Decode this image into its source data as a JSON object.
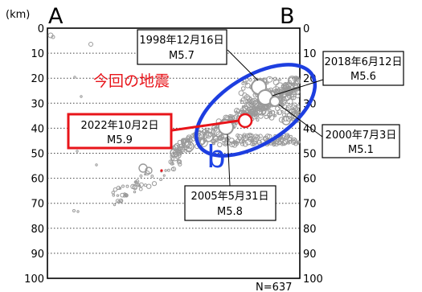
{
  "section": {
    "start_label": "A",
    "end_label": "B",
    "depth_unit": "(km)",
    "count_label": "N=637",
    "region_label": "b"
  },
  "depth_axis": {
    "ticks": [
      0,
      10,
      20,
      30,
      40,
      50,
      60,
      70,
      80,
      90,
      100
    ],
    "range": [
      0,
      100
    ]
  },
  "highlight": {
    "heading": "今回の地震",
    "date": "2022年10月2日",
    "magnitude": "M5.9",
    "color": "#e8141a"
  },
  "historical_events": [
    {
      "date": "1998年12月16日",
      "magnitude": "M5.7"
    },
    {
      "date": "2018年6月12日",
      "magnitude": "M5.6"
    },
    {
      "date": "2000年7月3日",
      "magnitude": "M5.1"
    },
    {
      "date": "2005年5月31日",
      "magnitude": "M5.8"
    }
  ],
  "colors": {
    "region_ellipse": "#1d3ee0",
    "region_label": "#1e44e6",
    "hypocenter": "#9a9a9a"
  }
}
